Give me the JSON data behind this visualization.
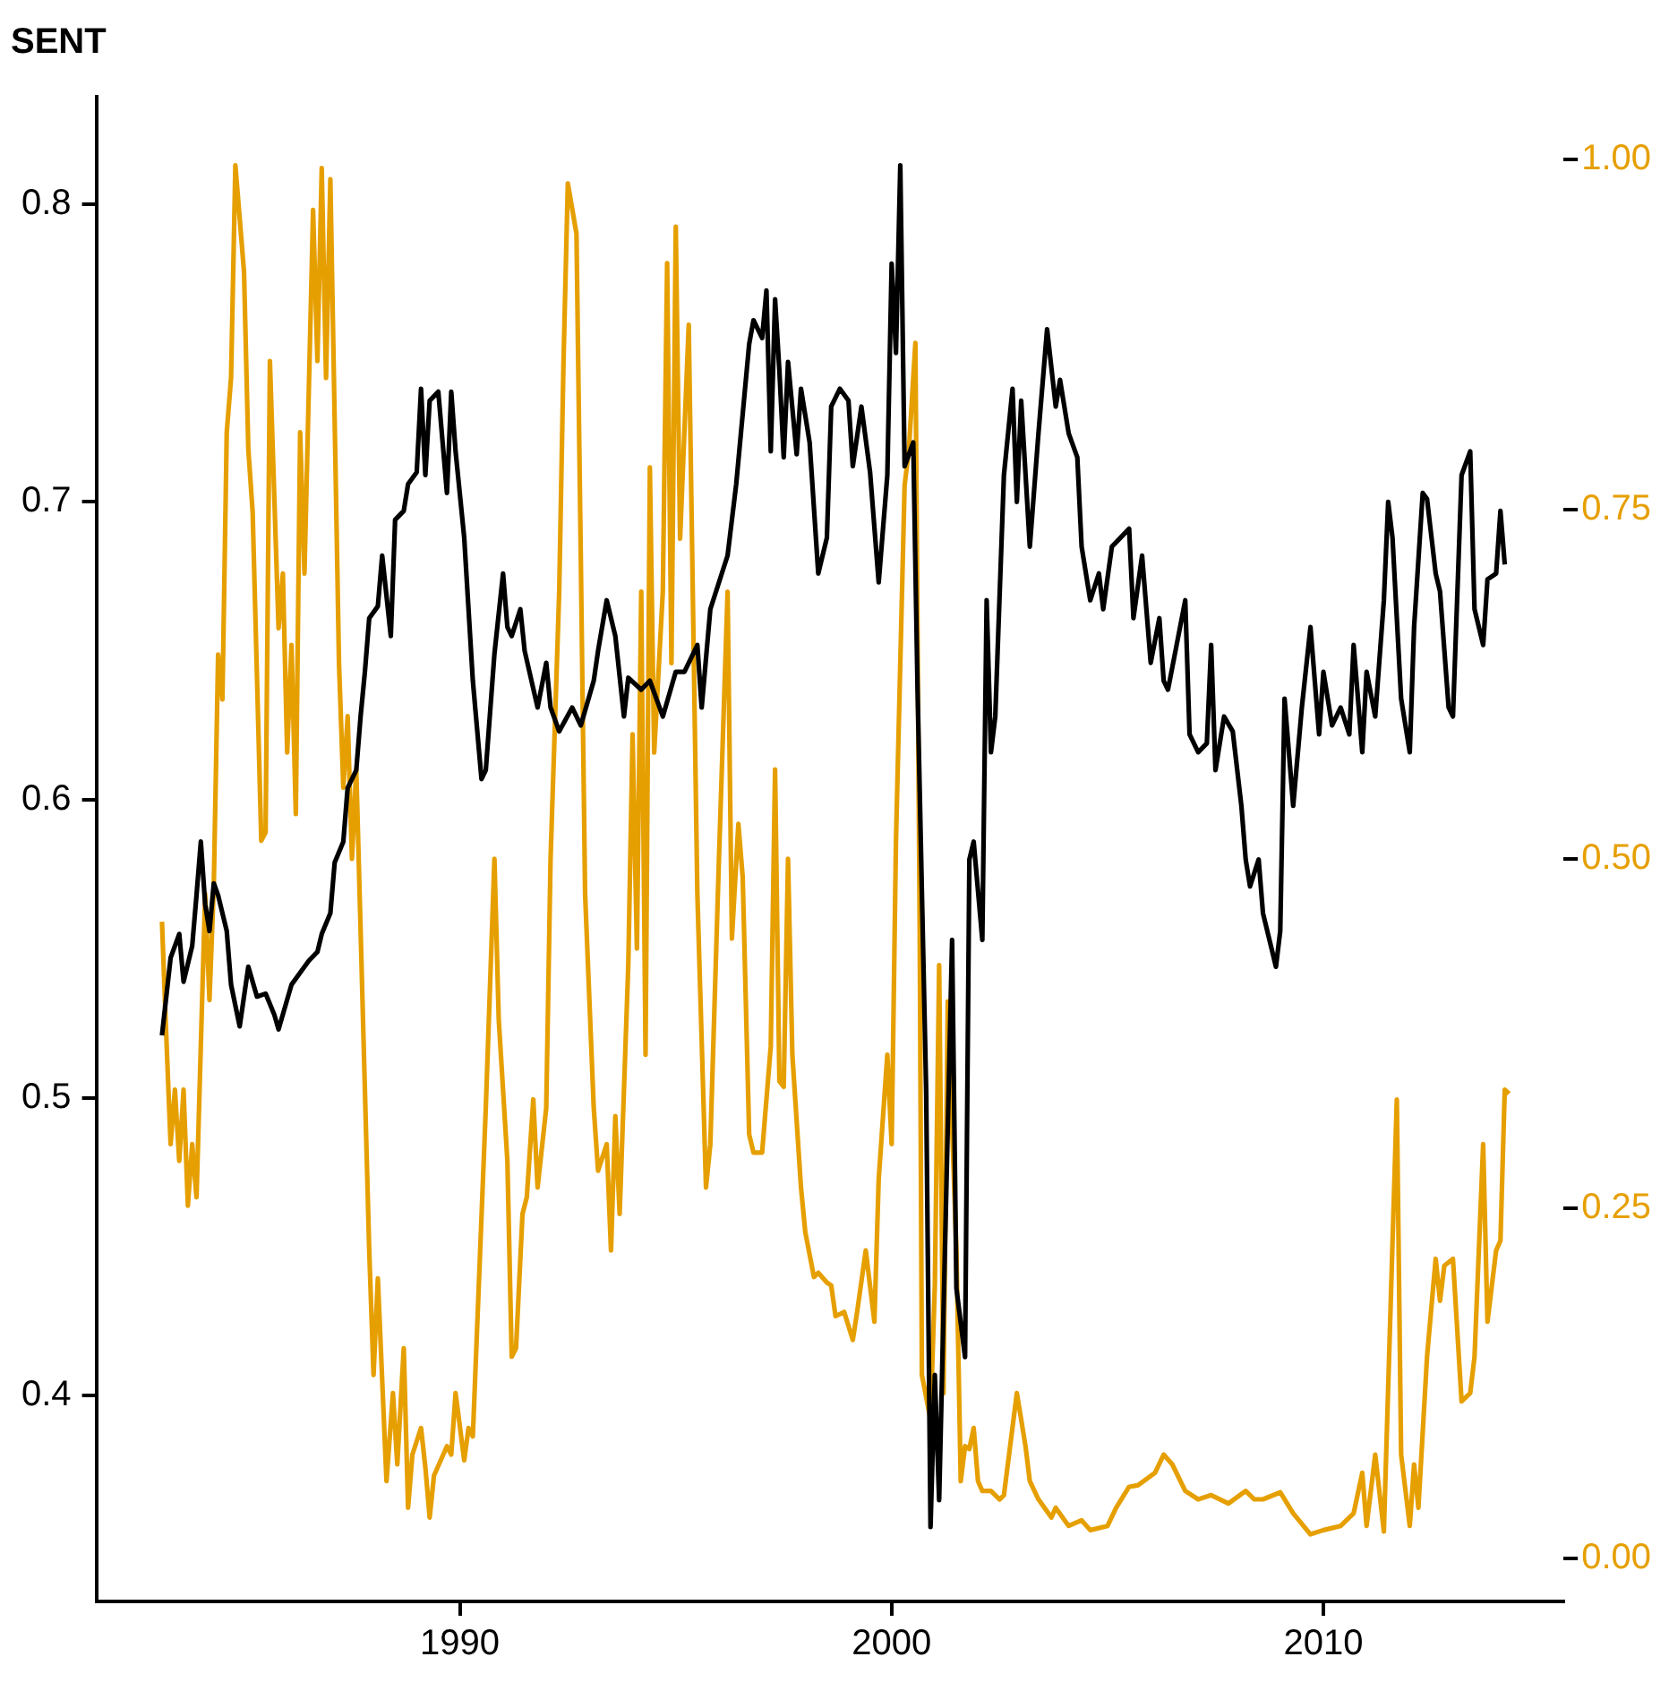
{
  "chart_data": {
    "type": "line",
    "title": "SENT",
    "xlim": [
      1981.58,
      2015.56
    ],
    "xticks": [
      1990,
      2000,
      2010
    ],
    "ylim": [
      0.331,
      0.836
    ],
    "yticks": [
      {
        "value": 0.4,
        "label": "0.4"
      },
      {
        "value": 0.5,
        "label": "0.5"
      },
      {
        "value": 0.6,
        "label": "0.6"
      },
      {
        "value": 0.7,
        "label": "0.7"
      },
      {
        "value": 0.8,
        "label": "0.8"
      }
    ],
    "y2lim": [
      -0.031,
      1.045
    ],
    "y2ticks": [
      {
        "value": 0,
        "label": "0.00"
      },
      {
        "value": 0.25,
        "label": "0.25"
      },
      {
        "value": 0.5,
        "label": "0.50"
      },
      {
        "value": 0.75,
        "label": "0.75"
      },
      {
        "value": 1,
        "label": "1.00"
      }
    ],
    "grid": false,
    "legend": false,
    "marker": "none",
    "line_style": "solid",
    "series": [
      {
        "color": "#000000",
        "x": [
          1983.1,
          1983.3,
          1983.5,
          1983.6,
          1983.8,
          1983.9,
          1984.0,
          1984.1,
          1984.2,
          1984.3,
          1984.4,
          1984.6,
          1984.7,
          1984.9,
          1985.1,
          1985.3,
          1985.5,
          1985.7,
          1985.8,
          1986.1,
          1986.3,
          1986.5,
          1986.7,
          1986.8,
          1987.0,
          1987.1,
          1987.3,
          1987.4,
          1987.6,
          1987.7,
          1987.8,
          1987.9,
          1988.1,
          1988.2,
          1988.4,
          1988.5,
          1988.7,
          1988.8,
          1989.0,
          1989.1,
          1989.2,
          1989.3,
          1989.5,
          1989.7,
          1989.8,
          1989.9,
          1990.1,
          1990.3,
          1990.5,
          1990.6,
          1990.8,
          1991.0,
          1991.1,
          1991.2,
          1991.4,
          1991.5,
          1991.8,
          1992.0,
          1992.1,
          1992.3,
          1992.6,
          1992.8,
          1993.1,
          1993.2,
          1993.4,
          1993.6,
          1993.8,
          1993.9,
          1994.2,
          1994.4,
          1994.7,
          1995.0,
          1995.2,
          1995.5,
          1995.6,
          1995.8,
          1996.0,
          1996.2,
          1996.4,
          1996.7,
          1996.8,
          1997.0,
          1997.1,
          1997.2,
          1997.3,
          1997.4,
          1997.5,
          1997.6,
          1997.8,
          1997.9,
          1998.1,
          1998.3,
          1998.5,
          1998.6,
          1998.8,
          1999.0,
          1999.1,
          1999.3,
          1999.5,
          1999.7,
          1999.9,
          2000.0,
          2000.1,
          2000.2,
          2000.3,
          2000.5,
          2000.6,
          2000.8,
          2000.9,
          2001.0,
          2001.1,
          2001.4,
          2001.5,
          2001.7,
          2001.8,
          2001.9,
          2002.1,
          2002.2,
          2002.3,
          2002.4,
          2002.6,
          2002.8,
          2002.9,
          2003.0,
          2003.2,
          2003.4,
          2003.6,
          2003.8,
          2003.9,
          2004.1,
          2004.3,
          2004.4,
          2004.6,
          2004.8,
          2004.9,
          2005.1,
          2005.3,
          2005.5,
          2005.6,
          2005.8,
          2006.0,
          2006.2,
          2006.3,
          2006.4,
          2006.6,
          2006.8,
          2006.9,
          2007.1,
          2007.3,
          2007.4,
          2007.5,
          2007.7,
          2007.9,
          2008.1,
          2008.2,
          2008.3,
          2008.5,
          2008.6,
          2008.8,
          2008.9,
          2009.0,
          2009.1,
          2009.3,
          2009.5,
          2009.7,
          2009.9,
          2010.0,
          2010.2,
          2010.4,
          2010.6,
          2010.7,
          2010.9,
          2011.0,
          2011.2,
          2011.4,
          2011.5,
          2011.6,
          2011.8,
          2012.0,
          2012.1,
          2012.3,
          2012.4,
          2012.6,
          2012.7,
          2012.9,
          2013.0,
          2013.2,
          2013.4,
          2013.5,
          2013.7,
          2013.8,
          2014.0,
          2014.1,
          2014.2
        ],
        "values": [
          0.521,
          0.547,
          0.555,
          0.539,
          0.551,
          0.568,
          0.586,
          0.565,
          0.556,
          0.572,
          0.568,
          0.556,
          0.538,
          0.524,
          0.544,
          0.534,
          0.535,
          0.528,
          0.523,
          0.538,
          0.542,
          0.546,
          0.549,
          0.555,
          0.562,
          0.579,
          0.586,
          0.604,
          0.61,
          0.628,
          0.643,
          0.661,
          0.665,
          0.682,
          0.655,
          0.694,
          0.697,
          0.706,
          0.71,
          0.738,
          0.709,
          0.734,
          0.737,
          0.703,
          0.737,
          0.717,
          0.688,
          0.64,
          0.607,
          0.61,
          0.649,
          0.676,
          0.658,
          0.655,
          0.664,
          0.65,
          0.631,
          0.646,
          0.631,
          0.623,
          0.631,
          0.625,
          0.64,
          0.65,
          0.667,
          0.655,
          0.628,
          0.641,
          0.637,
          0.64,
          0.628,
          0.643,
          0.643,
          0.652,
          0.631,
          0.664,
          0.673,
          0.682,
          0.706,
          0.753,
          0.761,
          0.755,
          0.771,
          0.717,
          0.768,
          0.744,
          0.715,
          0.747,
          0.716,
          0.738,
          0.72,
          0.676,
          0.688,
          0.732,
          0.738,
          0.734,
          0.712,
          0.732,
          0.71,
          0.673,
          0.709,
          0.78,
          0.75,
          0.813,
          0.712,
          0.72,
          0.637,
          0.502,
          0.356,
          0.407,
          0.365,
          0.553,
          0.436,
          0.413,
          0.58,
          0.586,
          0.553,
          0.667,
          0.616,
          0.628,
          0.709,
          0.738,
          0.7,
          0.734,
          0.685,
          0.723,
          0.758,
          0.732,
          0.741,
          0.723,
          0.715,
          0.685,
          0.667,
          0.676,
          0.664,
          0.685,
          0.688,
          0.691,
          0.661,
          0.682,
          0.646,
          0.661,
          0.64,
          0.637,
          0.652,
          0.667,
          0.622,
          0.616,
          0.619,
          0.652,
          0.61,
          0.628,
          0.623,
          0.598,
          0.58,
          0.571,
          0.58,
          0.562,
          0.55,
          0.544,
          0.556,
          0.634,
          0.598,
          0.631,
          0.658,
          0.622,
          0.643,
          0.625,
          0.631,
          0.622,
          0.652,
          0.616,
          0.643,
          0.628,
          0.667,
          0.7,
          0.688,
          0.634,
          0.616,
          0.658,
          0.703,
          0.701,
          0.676,
          0.67,
          0.631,
          0.628,
          0.709,
          0.717,
          0.664,
          0.652,
          0.674,
          0.676,
          0.697,
          0.679
        ]
      },
      {
        "color": "#e69f00",
        "axis": "y2",
        "x": [
          1983.1,
          1983.2,
          1983.3,
          1983.4,
          1983.5,
          1983.6,
          1983.7,
          1983.8,
          1983.9,
          1984.1,
          1984.2,
          1984.3,
          1984.4,
          1984.5,
          1984.6,
          1984.7,
          1984.8,
          1985.0,
          1985.1,
          1985.2,
          1985.4,
          1985.5,
          1985.6,
          1985.8,
          1985.9,
          1986.0,
          1986.1,
          1986.2,
          1986.3,
          1986.4,
          1986.6,
          1986.7,
          1986.8,
          1986.9,
          1987.0,
          1987.2,
          1987.3,
          1987.4,
          1987.5,
          1987.6,
          1987.9,
          1988.0,
          1988.1,
          1988.3,
          1988.45,
          1988.55,
          1988.7,
          1988.8,
          1988.9,
          1989.1,
          1989.2,
          1989.3,
          1989.4,
          1989.7,
          1989.8,
          1989.9,
          1990.1,
          1990.2,
          1990.3,
          1990.6,
          1990.8,
          1990.9,
          1991.1,
          1991.2,
          1991.3,
          1991.45,
          1991.55,
          1991.7,
          1991.8,
          1992.0,
          1992.1,
          1992.3,
          1992.4,
          1992.5,
          1992.7,
          1992.8,
          1992.9,
          1993.1,
          1993.2,
          1993.4,
          1993.5,
          1993.6,
          1993.7,
          1993.9,
          1994.0,
          1994.1,
          1994.2,
          1994.3,
          1994.4,
          1994.5,
          1994.7,
          1994.8,
          1994.9,
          1995.0,
          1995.1,
          1995.3,
          1995.5,
          1995.7,
          1995.8,
          1996.0,
          1996.2,
          1996.3,
          1996.45,
          1996.55,
          1996.7,
          1996.8,
          1997.0,
          1997.2,
          1997.3,
          1997.4,
          1997.5,
          1997.6,
          1997.7,
          1997.9,
          1998.0,
          1998.2,
          1998.3,
          1998.5,
          1998.6,
          1998.7,
          1998.9,
          1999.1,
          1999.2,
          1999.4,
          1999.6,
          1999.7,
          1999.9,
          2000.0,
          2000.1,
          2000.3,
          2000.4,
          2000.55,
          2000.65,
          2000.7,
          2000.9,
          2001.0,
          2001.1,
          2001.2,
          2001.3,
          2001.5,
          2001.6,
          2001.7,
          2001.8,
          2001.9,
          2002.0,
          2002.1,
          2002.3,
          2002.5,
          2002.6,
          2002.9,
          2003.1,
          2003.2,
          2003.4,
          2003.7,
          2003.8,
          2004.1,
          2004.4,
          2004.6,
          2005.0,
          2005.2,
          2005.5,
          2005.7,
          2006.1,
          2006.3,
          2006.5,
          2006.8,
          2007.1,
          2007.4,
          2007.8,
          2008.2,
          2008.4,
          2008.6,
          2009.0,
          2009.3,
          2009.7,
          2010.0,
          2010.4,
          2010.7,
          2010.9,
          2011.0,
          2011.2,
          2011.4,
          2011.7,
          2011.8,
          2012.0,
          2012.1,
          2012.2,
          2012.4,
          2012.6,
          2012.7,
          2012.8,
          2013.0,
          2013.2,
          2013.4,
          2013.5,
          2013.7,
          2013.8,
          2014.0,
          2014.1,
          2014.2,
          2014.3
        ],
        "values": [
          0.455,
          0.373,
          0.296,
          0.335,
          0.284,
          0.335,
          0.252,
          0.296,
          0.258,
          0.475,
          0.399,
          0.481,
          0.646,
          0.614,
          0.805,
          0.844,
          0.996,
          0.92,
          0.793,
          0.748,
          0.513,
          0.519,
          0.856,
          0.665,
          0.704,
          0.576,
          0.653,
          0.532,
          0.805,
          0.704,
          0.964,
          0.856,
          0.994,
          0.844,
          0.986,
          0.64,
          0.551,
          0.602,
          0.5,
          0.564,
          0.22,
          0.131,
          0.2,
          0.055,
          0.118,
          0.067,
          0.15,
          0.036,
          0.074,
          0.093,
          0.065,
          0.029,
          0.059,
          0.08,
          0.074,
          0.118,
          0.07,
          0.093,
          0.087,
          0.322,
          0.5,
          0.385,
          0.284,
          0.144,
          0.15,
          0.246,
          0.258,
          0.328,
          0.265,
          0.322,
          0.5,
          0.691,
          0.856,
          0.983,
          0.947,
          0.716,
          0.475,
          0.322,
          0.277,
          0.296,
          0.22,
          0.316,
          0.246,
          0.424,
          0.589,
          0.436,
          0.691,
          0.36,
          0.78,
          0.576,
          0.691,
          0.926,
          0.64,
          0.952,
          0.729,
          0.882,
          0.475,
          0.265,
          0.296,
          0.5,
          0.691,
          0.443,
          0.525,
          0.487,
          0.303,
          0.29,
          0.29,
          0.366,
          0.564,
          0.341,
          0.337,
          0.5,
          0.36,
          0.265,
          0.233,
          0.201,
          0.204,
          0.197,
          0.195,
          0.173,
          0.176,
          0.156,
          0.176,
          0.22,
          0.169,
          0.271,
          0.36,
          0.296,
          0.513,
          0.767,
          0.793,
          0.869,
          0.449,
          0.131,
          0.099,
          0.195,
          0.424,
          0.118,
          0.398,
          0.22,
          0.055,
          0.08,
          0.078,
          0.093,
          0.055,
          0.048,
          0.048,
          0.042,
          0.045,
          0.118,
          0.08,
          0.055,
          0.042,
          0.029,
          0.036,
          0.023,
          0.027,
          0.02,
          0.023,
          0.036,
          0.051,
          0.052,
          0.061,
          0.074,
          0.067,
          0.048,
          0.042,
          0.045,
          0.039,
          0.048,
          0.042,
          0.042,
          0.047,
          0.032,
          0.017,
          0.02,
          0.023,
          0.032,
          0.061,
          0.023,
          0.074,
          0.019,
          0.328,
          0.074,
          0.023,
          0.067,
          0.036,
          0.144,
          0.214,
          0.184,
          0.209,
          0.214,
          0.112,
          0.118,
          0.144,
          0.296,
          0.169,
          0.22,
          0.227,
          0.335,
          0.332
        ]
      }
    ]
  }
}
